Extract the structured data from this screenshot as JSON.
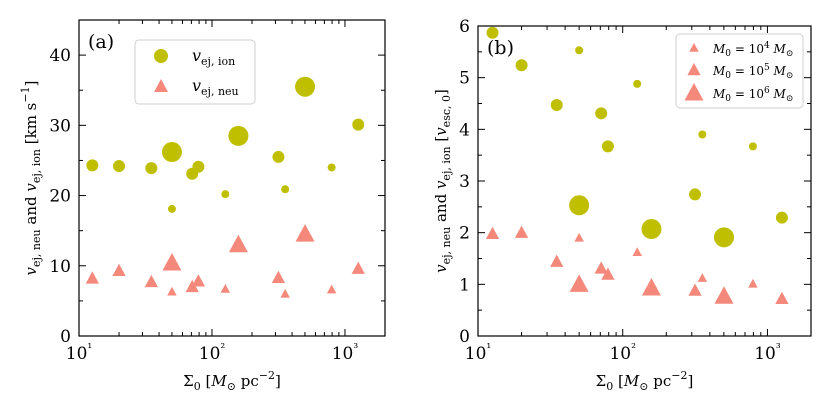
{
  "colors": {
    "ion": "#bfbf00",
    "neu": "#f4897b",
    "axis": "#000000"
  },
  "chart_data": [
    {
      "type": "scatter",
      "panel_label": "(a)",
      "xscale": "log",
      "xlim": [
        10,
        2000
      ],
      "ylim": [
        0,
        45
      ],
      "xticks": [
        10,
        100,
        1000
      ],
      "xtick_labels": [
        "10¹",
        "10²",
        "10³"
      ],
      "yticks": [
        0,
        10,
        20,
        30,
        40
      ],
      "ytick_labels": [
        "0",
        "10",
        "20",
        "30",
        "40"
      ],
      "xlabel": "Σ₀ [M⊙ pc⁻²]",
      "ylabel": "v_ej,neu and v_ej,ion [km s⁻¹]",
      "legend": {
        "placement": "top-left",
        "entries": [
          "v_ej, ion",
          "v_ej, neu"
        ]
      },
      "series": [
        {
          "name": "v_ej, ion",
          "marker": "circle",
          "points": [
            {
              "x": 12.6,
              "y": 24.3,
              "m": 5
            },
            {
              "x": 20,
              "y": 24.2,
              "m": 5
            },
            {
              "x": 35,
              "y": 23.9,
              "m": 5
            },
            {
              "x": 50,
              "y": 26.2,
              "m": 6
            },
            {
              "x": 50,
              "y": 18.1,
              "m": 4
            },
            {
              "x": 71,
              "y": 23.1,
              "m": 5
            },
            {
              "x": 79,
              "y": 24.1,
              "m": 5
            },
            {
              "x": 126,
              "y": 20.2,
              "m": 4
            },
            {
              "x": 158,
              "y": 28.5,
              "m": 6
            },
            {
              "x": 316,
              "y": 25.5,
              "m": 5
            },
            {
              "x": 355,
              "y": 20.9,
              "m": 4
            },
            {
              "x": 501,
              "y": 35.5,
              "m": 6
            },
            {
              "x": 794,
              "y": 24.0,
              "m": 4
            },
            {
              "x": 1259,
              "y": 30.1,
              "m": 5
            }
          ]
        },
        {
          "name": "v_ej, neu",
          "marker": "triangle",
          "points": [
            {
              "x": 12.6,
              "y": 8.2,
              "m": 5
            },
            {
              "x": 20,
              "y": 9.3,
              "m": 5
            },
            {
              "x": 35,
              "y": 7.7,
              "m": 5
            },
            {
              "x": 50,
              "y": 10.4,
              "m": 6
            },
            {
              "x": 50,
              "y": 6.3,
              "m": 4
            },
            {
              "x": 71,
              "y": 7.0,
              "m": 5
            },
            {
              "x": 79,
              "y": 7.8,
              "m": 5
            },
            {
              "x": 126,
              "y": 6.7,
              "m": 4
            },
            {
              "x": 158,
              "y": 13.0,
              "m": 6
            },
            {
              "x": 316,
              "y": 8.3,
              "m": 5
            },
            {
              "x": 355,
              "y": 6.0,
              "m": 4
            },
            {
              "x": 501,
              "y": 14.5,
              "m": 6
            },
            {
              "x": 794,
              "y": 6.6,
              "m": 4
            },
            {
              "x": 1259,
              "y": 9.6,
              "m": 5
            }
          ]
        }
      ]
    },
    {
      "type": "scatter",
      "panel_label": "(b)",
      "xscale": "log",
      "xlim": [
        10,
        2000
      ],
      "ylim": [
        0,
        6
      ],
      "xticks": [
        10,
        100,
        1000
      ],
      "xtick_labels": [
        "10¹",
        "10²",
        "10³"
      ],
      "yticks": [
        0,
        1,
        2,
        3,
        4,
        5,
        6
      ],
      "ytick_labels": [
        "0",
        "1",
        "2",
        "3",
        "4",
        "5",
        "6"
      ],
      "xlabel": "Σ₀ [M⊙ pc⁻²]",
      "ylabel": "v_ej,neu and v_ej,ion [v_esc,0]",
      "legend": {
        "placement": "top-right",
        "entries": [
          "M₀ = 10⁴ M⊙",
          "M₀ = 10⁵ M⊙",
          "M₀ = 10⁶ M⊙"
        ]
      },
      "series": [
        {
          "name": "v_ej, ion",
          "marker": "circle",
          "points": [
            {
              "x": 12.6,
              "y": 5.87,
              "m": 5
            },
            {
              "x": 20,
              "y": 5.24,
              "m": 5
            },
            {
              "x": 35,
              "y": 4.47,
              "m": 5
            },
            {
              "x": 50,
              "y": 2.53,
              "m": 6
            },
            {
              "x": 50,
              "y": 5.53,
              "m": 4
            },
            {
              "x": 71,
              "y": 4.31,
              "m": 5
            },
            {
              "x": 79,
              "y": 3.67,
              "m": 5
            },
            {
              "x": 126,
              "y": 4.88,
              "m": 4
            },
            {
              "x": 158,
              "y": 2.07,
              "m": 6
            },
            {
              "x": 316,
              "y": 2.74,
              "m": 5
            },
            {
              "x": 355,
              "y": 3.9,
              "m": 4
            },
            {
              "x": 501,
              "y": 1.91,
              "m": 6
            },
            {
              "x": 794,
              "y": 3.67,
              "m": 4
            },
            {
              "x": 1259,
              "y": 2.29,
              "m": 5
            }
          ]
        },
        {
          "name": "v_ej, neu",
          "marker": "triangle",
          "points": [
            {
              "x": 12.6,
              "y": 1.98,
              "m": 5
            },
            {
              "x": 20,
              "y": 2.0,
              "m": 5
            },
            {
              "x": 35,
              "y": 1.44,
              "m": 5
            },
            {
              "x": 50,
              "y": 1.0,
              "m": 6
            },
            {
              "x": 50,
              "y": 1.9,
              "m": 4
            },
            {
              "x": 71,
              "y": 1.31,
              "m": 5
            },
            {
              "x": 79,
              "y": 1.19,
              "m": 5
            },
            {
              "x": 126,
              "y": 1.62,
              "m": 4
            },
            {
              "x": 158,
              "y": 0.93,
              "m": 6
            },
            {
              "x": 316,
              "y": 0.88,
              "m": 5
            },
            {
              "x": 355,
              "y": 1.12,
              "m": 4
            },
            {
              "x": 501,
              "y": 0.77,
              "m": 6
            },
            {
              "x": 794,
              "y": 1.01,
              "m": 4
            },
            {
              "x": 1259,
              "y": 0.72,
              "m": 5
            }
          ]
        }
      ]
    }
  ]
}
